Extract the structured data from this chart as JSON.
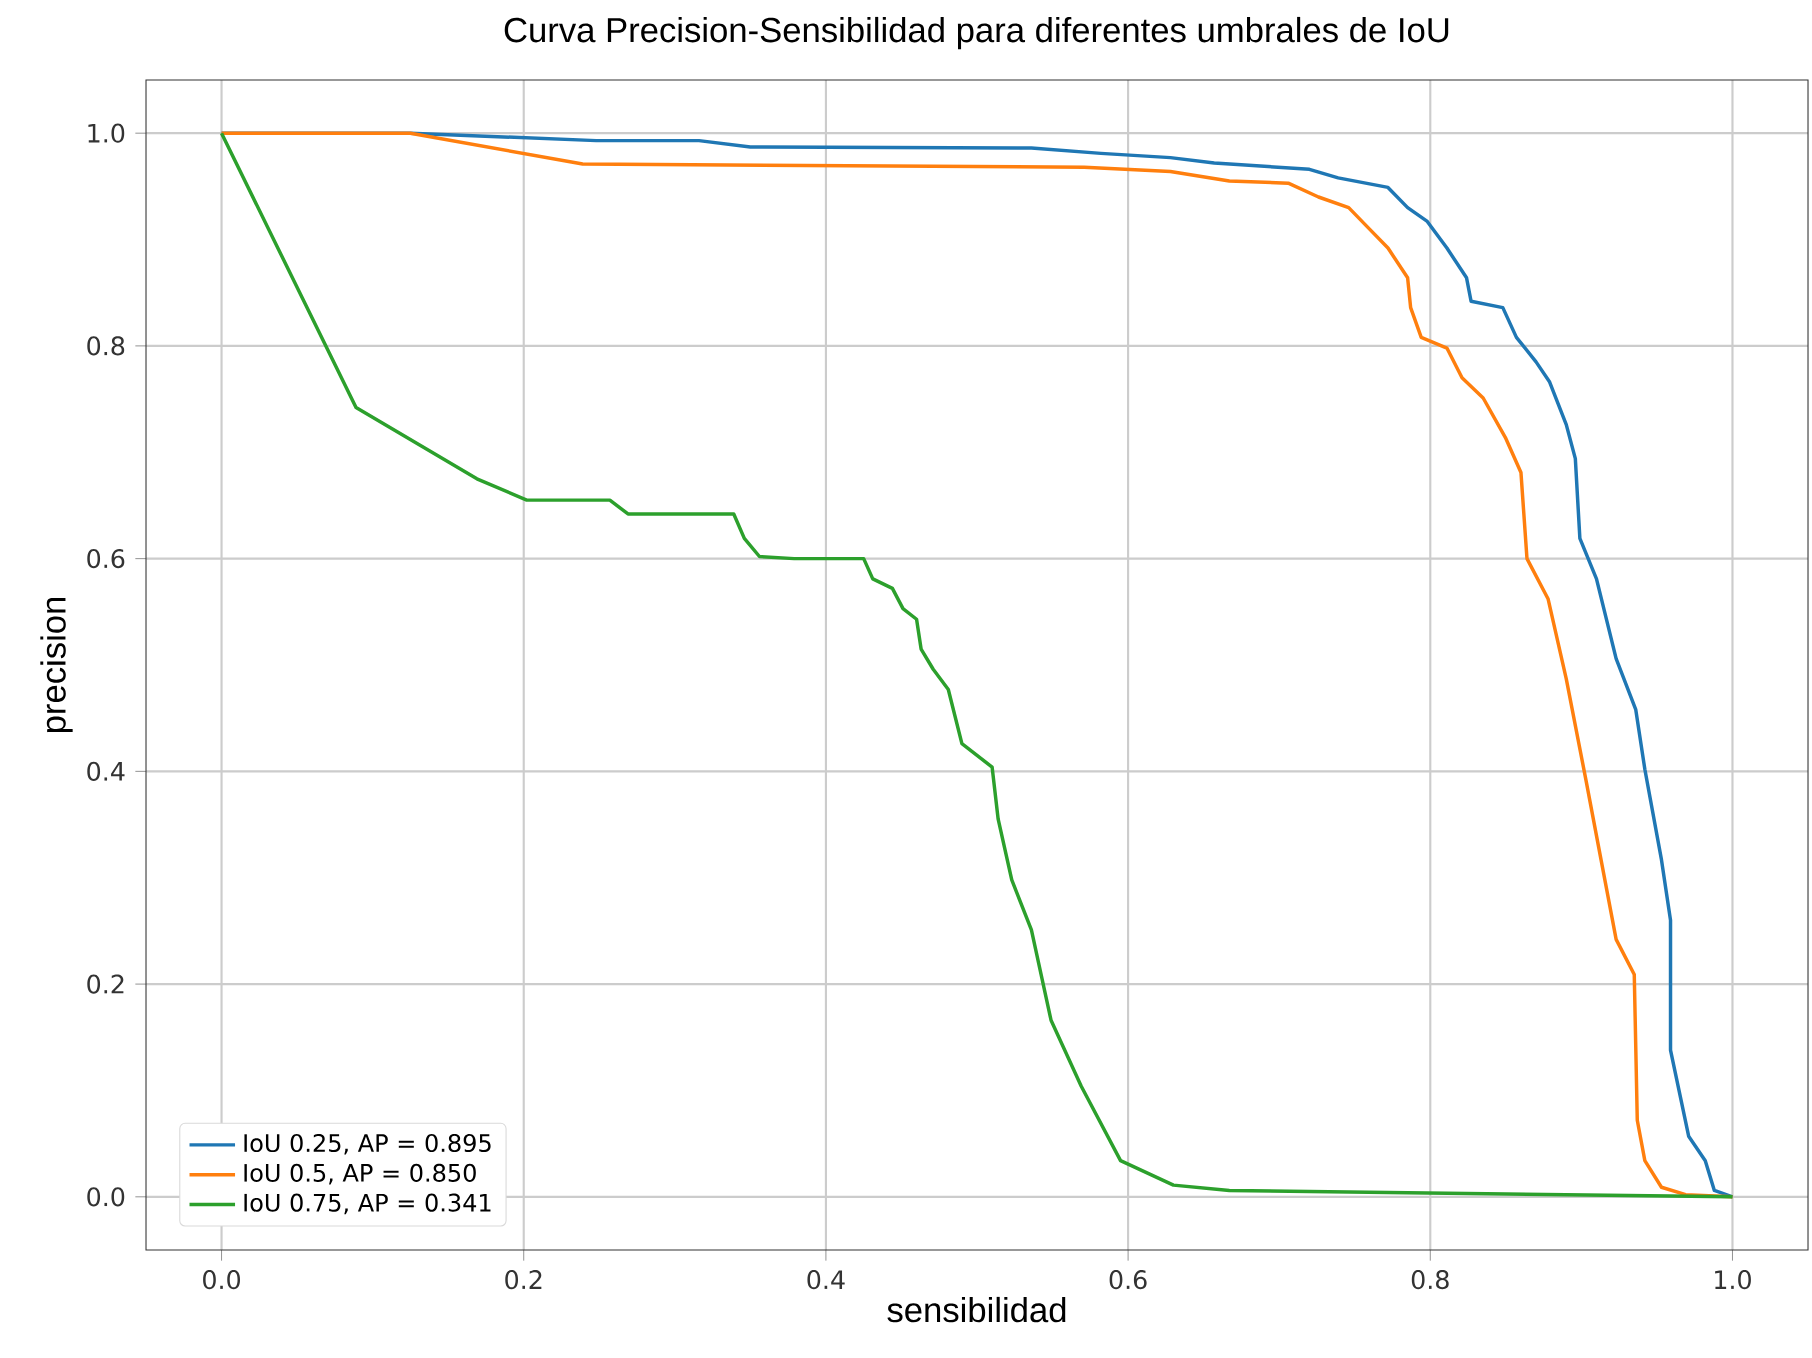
{
  "chart_data": {
    "type": "line",
    "title": "Curva Precision-Sensibilidad para diferentes umbrales de IoU",
    "xlabel": "sensibilidad",
    "ylabel": "precision",
    "xlim": [
      -0.05,
      1.05
    ],
    "ylim": [
      -0.05,
      1.05
    ],
    "xticks": [
      {
        "value": 0,
        "label": "0.0"
      },
      {
        "value": 0.2,
        "label": "0.2"
      },
      {
        "value": 0.4,
        "label": "0.4"
      },
      {
        "value": 0.6,
        "label": "0.6"
      },
      {
        "value": 0.8,
        "label": "0.8"
      },
      {
        "value": 1,
        "label": "1.0"
      }
    ],
    "yticks": [
      {
        "value": 0,
        "label": "0.0"
      },
      {
        "value": 0.2,
        "label": "0.2"
      },
      {
        "value": 0.4,
        "label": "0.4"
      },
      {
        "value": 0.6,
        "label": "0.6"
      },
      {
        "value": 0.8,
        "label": "0.8"
      },
      {
        "value": 1,
        "label": "1.0"
      }
    ],
    "grid": true,
    "legend": "bottom left",
    "series": [
      {
        "name": "IoU 0.25, AP = 0.895",
        "color": "#1f77b4",
        "x": [
          0,
          0.125,
          0.248,
          0.316,
          0.35,
          0.536,
          0.582,
          0.628,
          0.657,
          0.72,
          0.739,
          0.772,
          0.785,
          0.798,
          0.811,
          0.824,
          0.827,
          0.848,
          0.857,
          0.87,
          0.879,
          0.89,
          0.896,
          0.899,
          0.91,
          0.923,
          0.936,
          0.942,
          0.953,
          0.959,
          0.959,
          0.971,
          0.982,
          0.988,
          1.0
        ],
        "values": [
          1,
          1,
          0.993,
          0.993,
          0.987,
          0.986,
          0.981,
          0.977,
          0.972,
          0.966,
          0.958,
          0.949,
          0.93,
          0.917,
          0.892,
          0.864,
          0.842,
          0.836,
          0.808,
          0.785,
          0.766,
          0.726,
          0.694,
          0.619,
          0.581,
          0.506,
          0.458,
          0.402,
          0.317,
          0.26,
          0.138,
          0.057,
          0.034,
          0.006,
          0
        ]
      },
      {
        "name": "IoU 0.5, AP = 0.850",
        "color": "#ff7f0e",
        "x": [
          0,
          0.125,
          0.239,
          0.571,
          0.628,
          0.667,
          0.706,
          0.726,
          0.746,
          0.759,
          0.772,
          0.785,
          0.787,
          0.794,
          0.811,
          0.821,
          0.835,
          0.85,
          0.86,
          0.864,
          0.878,
          0.89,
          0.903,
          0.913,
          0.923,
          0.935,
          0.937,
          0.942,
          0.953,
          0.969,
          1.0
        ],
        "values": [
          1,
          1,
          0.971,
          0.968,
          0.964,
          0.955,
          0.953,
          0.94,
          0.93,
          0.911,
          0.892,
          0.864,
          0.836,
          0.808,
          0.798,
          0.77,
          0.751,
          0.713,
          0.681,
          0.6,
          0.562,
          0.487,
          0.392,
          0.317,
          0.242,
          0.209,
          0.072,
          0.034,
          0.009,
          0.002,
          0
        ]
      },
      {
        "name": "IoU 0.75, AP = 0.341",
        "color": "#2ca02c",
        "x": [
          0,
          0.089,
          0.169,
          0.202,
          0.257,
          0.269,
          0.339,
          0.346,
          0.356,
          0.379,
          0.425,
          0.431,
          0.444,
          0.451,
          0.46,
          0.463,
          0.471,
          0.481,
          0.49,
          0.51,
          0.514,
          0.523,
          0.536,
          0.549,
          0.569,
          0.595,
          0.63,
          0.667,
          1.0
        ],
        "values": [
          1,
          0.742,
          0.675,
          0.655,
          0.655,
          0.642,
          0.642,
          0.619,
          0.602,
          0.6,
          0.6,
          0.581,
          0.572,
          0.553,
          0.543,
          0.515,
          0.496,
          0.477,
          0.426,
          0.404,
          0.355,
          0.298,
          0.251,
          0.166,
          0.104,
          0.034,
          0.011,
          0.006,
          0
        ]
      }
    ]
  }
}
